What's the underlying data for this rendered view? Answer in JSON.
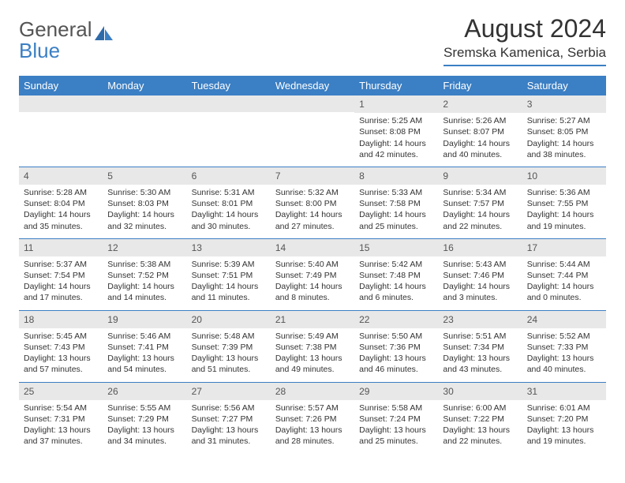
{
  "logo": {
    "word1": "General",
    "word2": "Blue"
  },
  "title": "August 2024",
  "location": "Sremska Kamenica, Serbia",
  "colors": {
    "accent": "#3b7fc4",
    "header_text": "#ffffff",
    "daynum_bg": "#e8e8e8",
    "text": "#333333",
    "background": "#ffffff"
  },
  "day_headers": [
    "Sunday",
    "Monday",
    "Tuesday",
    "Wednesday",
    "Thursday",
    "Friday",
    "Saturday"
  ],
  "weeks": [
    [
      {
        "n": "",
        "sr": "",
        "ss": "",
        "dl": ""
      },
      {
        "n": "",
        "sr": "",
        "ss": "",
        "dl": ""
      },
      {
        "n": "",
        "sr": "",
        "ss": "",
        "dl": ""
      },
      {
        "n": "",
        "sr": "",
        "ss": "",
        "dl": ""
      },
      {
        "n": "1",
        "sr": "Sunrise: 5:25 AM",
        "ss": "Sunset: 8:08 PM",
        "dl": "Daylight: 14 hours and 42 minutes."
      },
      {
        "n": "2",
        "sr": "Sunrise: 5:26 AM",
        "ss": "Sunset: 8:07 PM",
        "dl": "Daylight: 14 hours and 40 minutes."
      },
      {
        "n": "3",
        "sr": "Sunrise: 5:27 AM",
        "ss": "Sunset: 8:05 PM",
        "dl": "Daylight: 14 hours and 38 minutes."
      }
    ],
    [
      {
        "n": "4",
        "sr": "Sunrise: 5:28 AM",
        "ss": "Sunset: 8:04 PM",
        "dl": "Daylight: 14 hours and 35 minutes."
      },
      {
        "n": "5",
        "sr": "Sunrise: 5:30 AM",
        "ss": "Sunset: 8:03 PM",
        "dl": "Daylight: 14 hours and 32 minutes."
      },
      {
        "n": "6",
        "sr": "Sunrise: 5:31 AM",
        "ss": "Sunset: 8:01 PM",
        "dl": "Daylight: 14 hours and 30 minutes."
      },
      {
        "n": "7",
        "sr": "Sunrise: 5:32 AM",
        "ss": "Sunset: 8:00 PM",
        "dl": "Daylight: 14 hours and 27 minutes."
      },
      {
        "n": "8",
        "sr": "Sunrise: 5:33 AM",
        "ss": "Sunset: 7:58 PM",
        "dl": "Daylight: 14 hours and 25 minutes."
      },
      {
        "n": "9",
        "sr": "Sunrise: 5:34 AM",
        "ss": "Sunset: 7:57 PM",
        "dl": "Daylight: 14 hours and 22 minutes."
      },
      {
        "n": "10",
        "sr": "Sunrise: 5:36 AM",
        "ss": "Sunset: 7:55 PM",
        "dl": "Daylight: 14 hours and 19 minutes."
      }
    ],
    [
      {
        "n": "11",
        "sr": "Sunrise: 5:37 AM",
        "ss": "Sunset: 7:54 PM",
        "dl": "Daylight: 14 hours and 17 minutes."
      },
      {
        "n": "12",
        "sr": "Sunrise: 5:38 AM",
        "ss": "Sunset: 7:52 PM",
        "dl": "Daylight: 14 hours and 14 minutes."
      },
      {
        "n": "13",
        "sr": "Sunrise: 5:39 AM",
        "ss": "Sunset: 7:51 PM",
        "dl": "Daylight: 14 hours and 11 minutes."
      },
      {
        "n": "14",
        "sr": "Sunrise: 5:40 AM",
        "ss": "Sunset: 7:49 PM",
        "dl": "Daylight: 14 hours and 8 minutes."
      },
      {
        "n": "15",
        "sr": "Sunrise: 5:42 AM",
        "ss": "Sunset: 7:48 PM",
        "dl": "Daylight: 14 hours and 6 minutes."
      },
      {
        "n": "16",
        "sr": "Sunrise: 5:43 AM",
        "ss": "Sunset: 7:46 PM",
        "dl": "Daylight: 14 hours and 3 minutes."
      },
      {
        "n": "17",
        "sr": "Sunrise: 5:44 AM",
        "ss": "Sunset: 7:44 PM",
        "dl": "Daylight: 14 hours and 0 minutes."
      }
    ],
    [
      {
        "n": "18",
        "sr": "Sunrise: 5:45 AM",
        "ss": "Sunset: 7:43 PM",
        "dl": "Daylight: 13 hours and 57 minutes."
      },
      {
        "n": "19",
        "sr": "Sunrise: 5:46 AM",
        "ss": "Sunset: 7:41 PM",
        "dl": "Daylight: 13 hours and 54 minutes."
      },
      {
        "n": "20",
        "sr": "Sunrise: 5:48 AM",
        "ss": "Sunset: 7:39 PM",
        "dl": "Daylight: 13 hours and 51 minutes."
      },
      {
        "n": "21",
        "sr": "Sunrise: 5:49 AM",
        "ss": "Sunset: 7:38 PM",
        "dl": "Daylight: 13 hours and 49 minutes."
      },
      {
        "n": "22",
        "sr": "Sunrise: 5:50 AM",
        "ss": "Sunset: 7:36 PM",
        "dl": "Daylight: 13 hours and 46 minutes."
      },
      {
        "n": "23",
        "sr": "Sunrise: 5:51 AM",
        "ss": "Sunset: 7:34 PM",
        "dl": "Daylight: 13 hours and 43 minutes."
      },
      {
        "n": "24",
        "sr": "Sunrise: 5:52 AM",
        "ss": "Sunset: 7:33 PM",
        "dl": "Daylight: 13 hours and 40 minutes."
      }
    ],
    [
      {
        "n": "25",
        "sr": "Sunrise: 5:54 AM",
        "ss": "Sunset: 7:31 PM",
        "dl": "Daylight: 13 hours and 37 minutes."
      },
      {
        "n": "26",
        "sr": "Sunrise: 5:55 AM",
        "ss": "Sunset: 7:29 PM",
        "dl": "Daylight: 13 hours and 34 minutes."
      },
      {
        "n": "27",
        "sr": "Sunrise: 5:56 AM",
        "ss": "Sunset: 7:27 PM",
        "dl": "Daylight: 13 hours and 31 minutes."
      },
      {
        "n": "28",
        "sr": "Sunrise: 5:57 AM",
        "ss": "Sunset: 7:26 PM",
        "dl": "Daylight: 13 hours and 28 minutes."
      },
      {
        "n": "29",
        "sr": "Sunrise: 5:58 AM",
        "ss": "Sunset: 7:24 PM",
        "dl": "Daylight: 13 hours and 25 minutes."
      },
      {
        "n": "30",
        "sr": "Sunrise: 6:00 AM",
        "ss": "Sunset: 7:22 PM",
        "dl": "Daylight: 13 hours and 22 minutes."
      },
      {
        "n": "31",
        "sr": "Sunrise: 6:01 AM",
        "ss": "Sunset: 7:20 PM",
        "dl": "Daylight: 13 hours and 19 minutes."
      }
    ]
  ]
}
